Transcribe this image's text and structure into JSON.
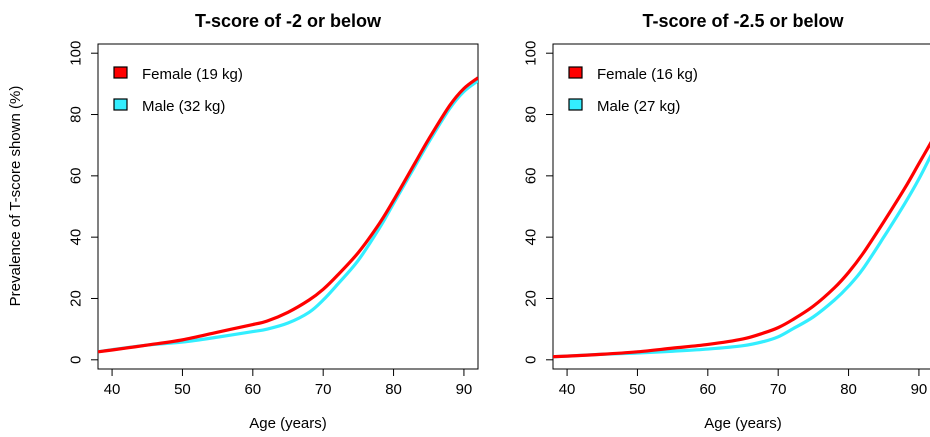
{
  "chart_data": [
    {
      "type": "line",
      "title": "T-score of -2 or below",
      "xlabel": "Age (years)",
      "ylabel": "Prevalence of T-score shown (%)",
      "xlim": [
        38,
        92
      ],
      "ylim": [
        -3,
        103
      ],
      "xticks": [
        40,
        50,
        60,
        70,
        80,
        90
      ],
      "yticks": [
        0,
        20,
        40,
        60,
        80,
        100
      ],
      "legend_position": "top-left",
      "series": [
        {
          "name": "Female (19 kg)",
          "color": "#ff0000",
          "x": [
            38,
            40,
            45,
            50,
            55,
            60,
            62,
            65,
            68,
            70,
            72,
            75,
            78,
            80,
            83,
            85,
            88,
            90,
            92
          ],
          "y": [
            2.6,
            3.2,
            4.8,
            6.5,
            9,
            11.5,
            12.6,
            15.5,
            19.5,
            23,
            27.5,
            35,
            44.5,
            52,
            64,
            72,
            83,
            88.5,
            92
          ]
        },
        {
          "name": "Male (32 kg)",
          "color": "#33eeff",
          "x": [
            38,
            40,
            45,
            50,
            55,
            60,
            62,
            65,
            68,
            70,
            72,
            75,
            78,
            80,
            83,
            85,
            88,
            90,
            92
          ],
          "y": [
            2.6,
            3.3,
            4.8,
            5.8,
            7.4,
            9.2,
            10,
            12,
            15.5,
            19.5,
            24.5,
            32.5,
            43,
            51,
            63,
            71,
            82,
            87.5,
            91
          ]
        }
      ]
    },
    {
      "type": "line",
      "title": "T-score of -2.5 or below",
      "xlabel": "Age (years)",
      "ylabel": "",
      "xlim": [
        38,
        92
      ],
      "ylim": [
        -3,
        103
      ],
      "xticks": [
        40,
        50,
        60,
        70,
        80,
        90
      ],
      "yticks": [
        0,
        20,
        40,
        60,
        80,
        100
      ],
      "legend_position": "top-left",
      "series": [
        {
          "name": "Female (16 kg)",
          "color": "#ff0000",
          "x": [
            38,
            40,
            45,
            50,
            55,
            60,
            65,
            68,
            70,
            72,
            75,
            78,
            80,
            82,
            85,
            88,
            90,
            92
          ],
          "y": [
            1,
            1.2,
            1.8,
            2.6,
            3.8,
            5,
            6.8,
            8.8,
            10.5,
            13,
            17.5,
            23.5,
            28.5,
            34.5,
            45,
            56,
            64,
            72
          ]
        },
        {
          "name": "Male (27 kg)",
          "color": "#33eeff",
          "x": [
            38,
            40,
            45,
            50,
            55,
            60,
            65,
            68,
            70,
            72,
            75,
            78,
            80,
            82,
            85,
            88,
            90,
            92
          ],
          "y": [
            1,
            1.2,
            1.8,
            2.2,
            2.8,
            3.5,
            4.6,
            6,
            7.5,
            10,
            14,
            19.5,
            24,
            29.5,
            40,
            51,
            59,
            68
          ]
        }
      ]
    }
  ]
}
